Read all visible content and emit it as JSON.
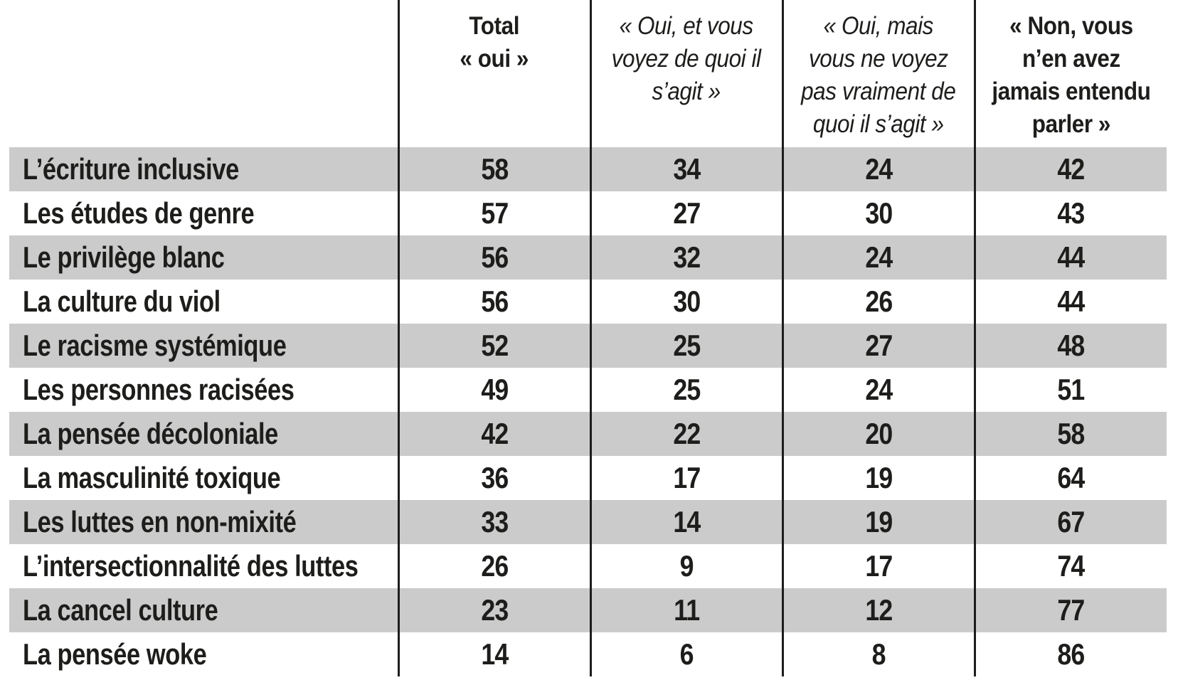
{
  "table": {
    "header": {
      "corner": "",
      "columns": [
        {
          "id": "total-oui",
          "label": "Total\n« oui »"
        },
        {
          "id": "oui-voyez",
          "label": "« Oui, et vous\nvoyez de quoi il\ns’agit »"
        },
        {
          "id": "oui-pas-vraiment",
          "label": "« Oui, mais\nvous ne voyez\npas vraiment de\nquoi il s’agit »"
        },
        {
          "id": "non-jamais-entendu",
          "label": "« Non, vous\nn’en avez\njamais entendu\nparler »"
        }
      ]
    },
    "rows": [
      {
        "label": "L’écriture inclusive",
        "values": [
          "58",
          "34",
          "24",
          "42"
        ]
      },
      {
        "label": "Les études de genre",
        "values": [
          "57",
          "27",
          "30",
          "43"
        ]
      },
      {
        "label": "Le privilège blanc",
        "values": [
          "56",
          "32",
          "24",
          "44"
        ]
      },
      {
        "label": "La culture du viol",
        "values": [
          "56",
          "30",
          "26",
          "44"
        ]
      },
      {
        "label": "Le racisme systémique",
        "values": [
          "52",
          "25",
          "27",
          "48"
        ]
      },
      {
        "label": "Les personnes racisées",
        "values": [
          "49",
          "25",
          "24",
          "51"
        ]
      },
      {
        "label": "La pensée décoloniale",
        "values": [
          "42",
          "22",
          "20",
          "58"
        ]
      },
      {
        "label": "La masculinité toxique",
        "values": [
          "36",
          "17",
          "19",
          "64"
        ]
      },
      {
        "label": "Les luttes en non-mixité",
        "values": [
          "33",
          "14",
          "19",
          "67"
        ]
      },
      {
        "label": "L’intersectionnalité des luttes",
        "values": [
          "26",
          "9",
          "17",
          "74"
        ]
      },
      {
        "label": "La cancel culture",
        "values": [
          "23",
          "11",
          "12",
          "77"
        ]
      },
      {
        "label": "La pensée woke",
        "values": [
          "14",
          "6",
          "8",
          "86"
        ]
      }
    ]
  },
  "colors": {
    "row_shade": "#cbcbcb",
    "divider": "#1d1d1b",
    "text": "#1d1d1b",
    "background": "#ffffff"
  },
  "chart_data": {
    "type": "table",
    "categories": [
      "L’écriture inclusive",
      "Les études de genre",
      "Le privilège blanc",
      "La culture du viol",
      "Le racisme systémique",
      "Les personnes racisées",
      "La pensée décoloniale",
      "La masculinité toxique",
      "Les luttes en non-mixité",
      "L’intersectionnalité des luttes",
      "La cancel culture",
      "La pensée woke"
    ],
    "series": [
      {
        "name": "Total « oui »",
        "values": [
          58,
          57,
          56,
          56,
          52,
          49,
          42,
          36,
          33,
          26,
          23,
          14
        ]
      },
      {
        "name": "« Oui, et vous voyez de quoi il s’agit »",
        "values": [
          34,
          27,
          32,
          30,
          25,
          25,
          22,
          17,
          14,
          9,
          11,
          6
        ]
      },
      {
        "name": "« Oui, mais vous ne voyez pas vraiment de quoi il s’agit »",
        "values": [
          24,
          30,
          24,
          26,
          27,
          24,
          20,
          19,
          19,
          17,
          12,
          8
        ]
      },
      {
        "name": "« Non, vous n’en avez jamais entendu parler »",
        "values": [
          42,
          43,
          44,
          44,
          48,
          51,
          58,
          64,
          67,
          74,
          77,
          86
        ]
      }
    ],
    "layout": {
      "row_striping": "alternating gray starting with first data row",
      "column_dividers": "vertical black rules between all 5 columns, full height",
      "values_unit": "percent"
    }
  }
}
